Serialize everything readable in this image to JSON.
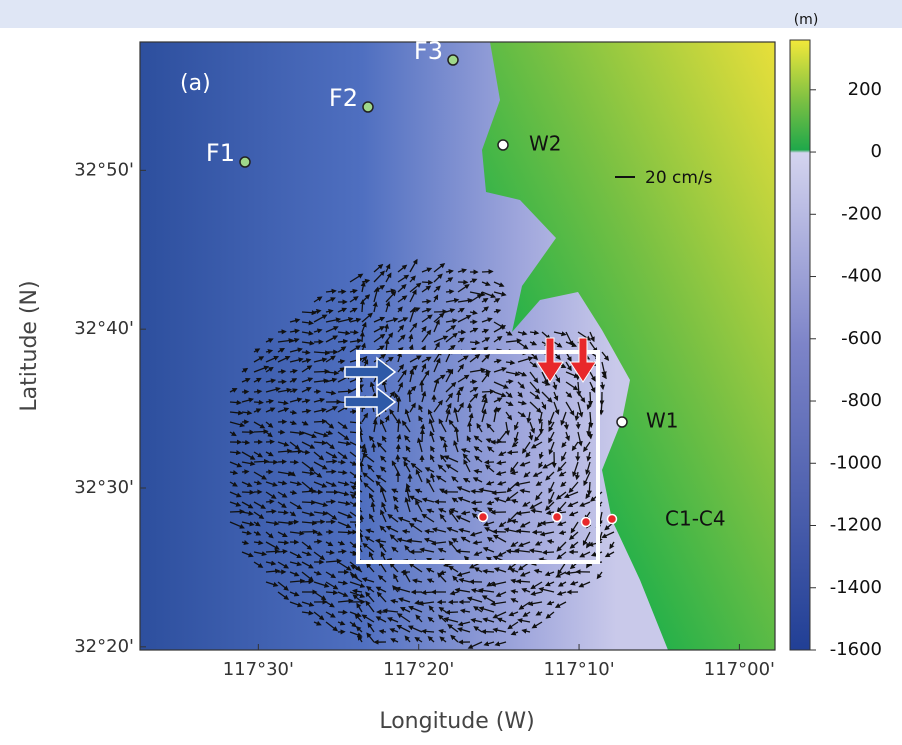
{
  "map": {
    "panel_label": "(a)",
    "x_label": "Longitude (W)",
    "y_label": "Latitude (N)",
    "xlim": [
      -117.623,
      -116.963
    ],
    "ylim": [
      32.33,
      32.968
    ],
    "xticks": [
      {
        "value": -117.5,
        "label": "117°30'"
      },
      {
        "value": -117.333333,
        "label": "117°20'"
      },
      {
        "value": -117.166667,
        "label": "117°10'"
      },
      {
        "value": -117.0,
        "label": "117°00'"
      }
    ],
    "yticks": [
      {
        "value": 32.833333,
        "label": "32°50'"
      },
      {
        "value": 32.666667,
        "label": "32°40'"
      },
      {
        "value": 32.5,
        "label": "32°30'"
      },
      {
        "value": 32.333333,
        "label": "32°20'"
      }
    ],
    "stations": [
      "F1",
      "F2",
      "F3",
      "W2",
      "W1",
      "C1-C4"
    ],
    "scale_label": "20 cm/s"
  },
  "colorbar": {
    "unit": "(m)",
    "lim": [
      -1600,
      360
    ],
    "ticks": [
      200,
      0,
      -200,
      -400,
      -600,
      -800,
      -1000,
      -1200,
      -1400,
      -1600
    ]
  }
}
